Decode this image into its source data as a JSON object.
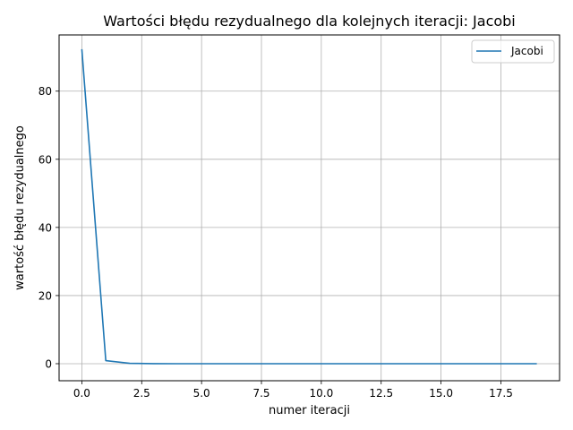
{
  "chart_data": {
    "type": "line",
    "title": "Wartości błędu rezydualnego dla kolejnych iteracji:  Jacobi",
    "xlabel": "numer iteracji",
    "ylabel": "wartość błędu rezydualnego",
    "xlim": [
      -0.95,
      19.95
    ],
    "ylim": [
      -5.0,
      96.5
    ],
    "xticks": [
      0.0,
      2.5,
      5.0,
      7.5,
      10.0,
      12.5,
      15.0,
      17.5
    ],
    "xtick_labels": [
      "0.0",
      "2.5",
      "5.0",
      "7.5",
      "10.0",
      "12.5",
      "15.0",
      "17.5"
    ],
    "yticks": [
      0,
      20,
      40,
      60,
      80
    ],
    "ytick_labels": [
      "0",
      "20",
      "40",
      "60",
      "80"
    ],
    "grid": true,
    "legend_position": "top-right",
    "series": [
      {
        "name": "Jacobi",
        "color": "#1f77b4",
        "x": [
          0,
          1,
          2,
          3,
          4,
          5,
          6,
          7,
          8,
          9,
          10,
          11,
          12,
          13,
          14,
          15,
          16,
          17,
          18,
          19
        ],
        "values": [
          92.3,
          0.9,
          0.1,
          0.02,
          0.0,
          0.0,
          0.0,
          0.0,
          0.0,
          0.0,
          0.0,
          0.0,
          0.0,
          0.0,
          0.0,
          0.0,
          0.0,
          0.0,
          0.0,
          0.0
        ]
      }
    ]
  }
}
